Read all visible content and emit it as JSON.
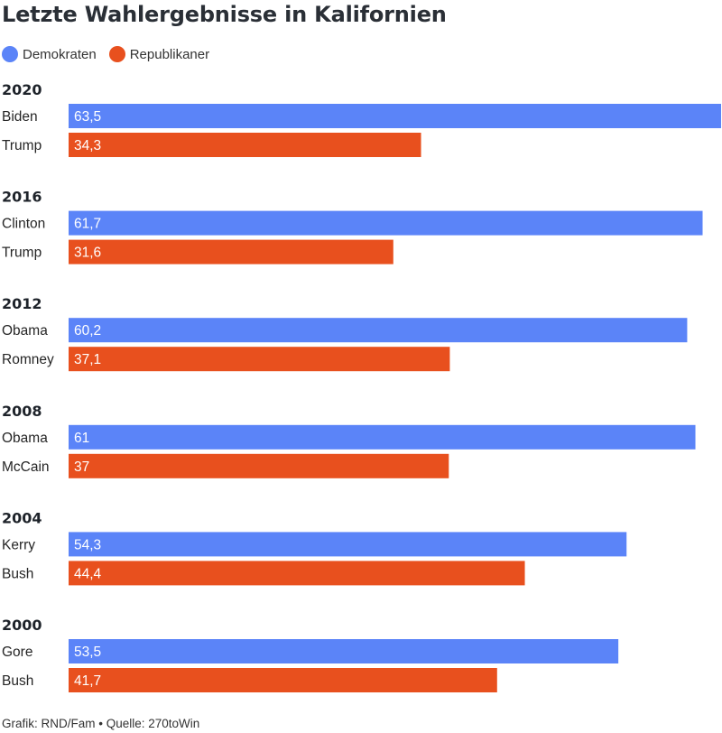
{
  "title": "Letzte Wahlergebnisse in Kalifornien",
  "legend": [
    {
      "label": "Demokraten",
      "color": "#5b84f8"
    },
    {
      "label": "Republikaner",
      "color": "#e8501e"
    }
  ],
  "source": "Grafik: RND/Fam • Quelle: 270toWin",
  "chart_data": {
    "type": "bar",
    "orientation": "horizontal",
    "title": "Letzte Wahlergebnisse in Kalifornien",
    "value_range": [
      0,
      63.5
    ],
    "colors": {
      "Demokraten": "#5b84f8",
      "Republikaner": "#e8501e"
    },
    "groups": [
      {
        "year": "2020",
        "bars": [
          {
            "candidate": "Biden",
            "party": "Demokraten",
            "value": 63.5,
            "label": "63,5"
          },
          {
            "candidate": "Trump",
            "party": "Republikaner",
            "value": 34.3,
            "label": "34,3"
          }
        ]
      },
      {
        "year": "2016",
        "bars": [
          {
            "candidate": "Clinton",
            "party": "Demokraten",
            "value": 61.7,
            "label": "61,7"
          },
          {
            "candidate": "Trump",
            "party": "Republikaner",
            "value": 31.6,
            "label": "31,6"
          }
        ]
      },
      {
        "year": "2012",
        "bars": [
          {
            "candidate": "Obama",
            "party": "Demokraten",
            "value": 60.2,
            "label": "60,2"
          },
          {
            "candidate": "Romney",
            "party": "Republikaner",
            "value": 37.1,
            "label": "37,1"
          }
        ]
      },
      {
        "year": "2008",
        "bars": [
          {
            "candidate": "Obama",
            "party": "Demokraten",
            "value": 61,
            "label": "61"
          },
          {
            "candidate": "McCain",
            "party": "Republikaner",
            "value": 37,
            "label": "37"
          }
        ]
      },
      {
        "year": "2004",
        "bars": [
          {
            "candidate": "Kerry",
            "party": "Demokraten",
            "value": 54.3,
            "label": "54,3"
          },
          {
            "candidate": "Bush",
            "party": "Republikaner",
            "value": 44.4,
            "label": "44,4"
          }
        ]
      },
      {
        "year": "2000",
        "bars": [
          {
            "candidate": "Gore",
            "party": "Demokraten",
            "value": 53.5,
            "label": "53,5"
          },
          {
            "candidate": "Bush",
            "party": "Republikaner",
            "value": 41.7,
            "label": "41,7"
          }
        ]
      }
    ]
  }
}
